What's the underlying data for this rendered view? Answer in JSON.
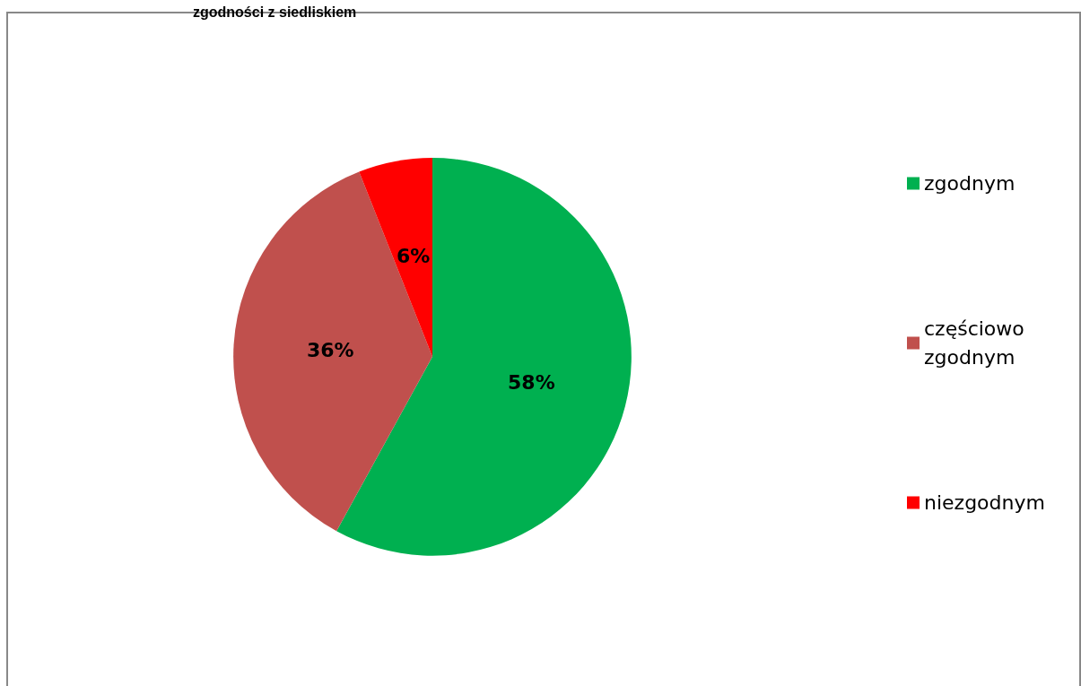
{
  "chart_data": {
    "type": "pie",
    "title": "zgodności z siedliskiem",
    "categories": [
      "zgodnym",
      "częściowo zgodnym",
      "niezgodnym"
    ],
    "values": [
      58,
      36,
      6
    ],
    "colors": [
      "#00b050",
      "#c0504d",
      "#ff0000"
    ],
    "value_labels": [
      "58%",
      "36%",
      "6%"
    ],
    "legend": "right"
  }
}
